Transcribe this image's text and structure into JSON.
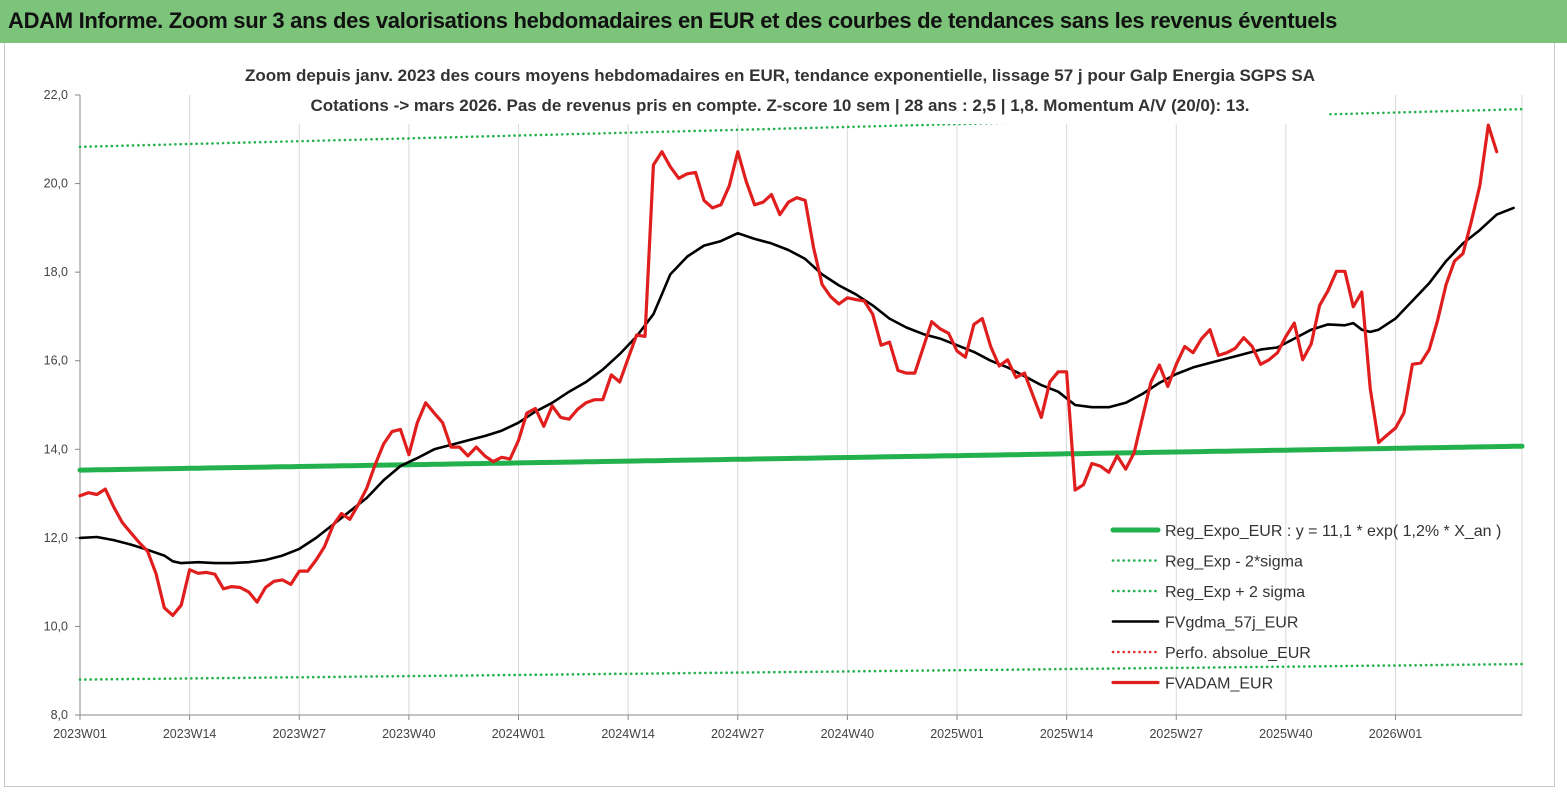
{
  "banner": {
    "title": "ADAM Informe. Zoom sur 3 ans des valorisations hebdomadaires en EUR et des courbes de tendances sans les revenus éventuels"
  },
  "chart_data": {
    "type": "line",
    "title": "Zoom depuis janv. 2023 des cours moyens hebdomadaires en EUR, tendance exponentielle, lissage 57 j pour Galp Energia SGPS SA",
    "subtitle": "Cotations -> mars 2026. Pas de revenus pris en compte. Z-score 10 sem | 28 ans : 2,5 | 1,8. Momentum A/V (20/0): 13.",
    "xlabel": "",
    "ylabel": "",
    "ylim": [
      8,
      22
    ],
    "yticks": [
      "8,0",
      "10,0",
      "12,0",
      "14,0",
      "16,0",
      "18,0",
      "20,0",
      "22,0"
    ],
    "xticks": [
      "2023W01",
      "2023W14",
      "2023W27",
      "2023W40",
      "2024W01",
      "2024W14",
      "2024W27",
      "2024W40",
      "2025W01",
      "2025W14",
      "2025W27",
      "2025W40",
      "2026W01"
    ],
    "x_tick_weeks": [
      0,
      13,
      26,
      39,
      52,
      65,
      78,
      91,
      104,
      117,
      130,
      143,
      156
    ],
    "x_range_weeks": [
      0,
      171
    ],
    "grid": "vertical",
    "legend_position": "right",
    "series": [
      {
        "name": "Reg_Expo_EUR : y = 11,1 * exp( 1,2% *  X_an )",
        "color": "#22b14c",
        "style": "solid-thick",
        "points": [
          [
            0,
            13.53
          ],
          [
            171,
            14.07
          ]
        ]
      },
      {
        "name": "Reg_Exp - 2*sigma",
        "color": "#22b14c",
        "style": "dotted",
        "points": [
          [
            0,
            8.8
          ],
          [
            171,
            9.15
          ]
        ]
      },
      {
        "name": "Reg_Exp + 2 sigma",
        "color": "#22b14c",
        "style": "dotted",
        "points": [
          [
            0,
            20.83
          ],
          [
            171,
            21.68
          ]
        ]
      },
      {
        "name": "FVgdma_57j_EUR",
        "color": "#000000",
        "style": "solid",
        "points": [
          [
            0,
            12.0
          ],
          [
            2,
            12.02
          ],
          [
            4,
            11.95
          ],
          [
            6,
            11.85
          ],
          [
            8,
            11.73
          ],
          [
            10,
            11.6
          ],
          [
            11,
            11.47
          ],
          [
            12,
            11.43
          ],
          [
            14,
            11.45
          ],
          [
            16,
            11.43
          ],
          [
            18,
            11.43
          ],
          [
            20,
            11.45
          ],
          [
            22,
            11.5
          ],
          [
            24,
            11.6
          ],
          [
            26,
            11.75
          ],
          [
            28,
            12.0
          ],
          [
            30,
            12.3
          ],
          [
            32,
            12.6
          ],
          [
            34,
            12.9
          ],
          [
            36,
            13.3
          ],
          [
            38,
            13.62
          ],
          [
            40,
            13.8
          ],
          [
            42,
            14.0
          ],
          [
            44,
            14.1
          ],
          [
            46,
            14.2
          ],
          [
            48,
            14.3
          ],
          [
            50,
            14.42
          ],
          [
            52,
            14.6
          ],
          [
            54,
            14.85
          ],
          [
            56,
            15.05
          ],
          [
            58,
            15.3
          ],
          [
            60,
            15.52
          ],
          [
            62,
            15.8
          ],
          [
            64,
            16.15
          ],
          [
            66,
            16.55
          ],
          [
            68,
            17.05
          ],
          [
            69,
            17.5
          ],
          [
            70,
            17.95
          ],
          [
            72,
            18.35
          ],
          [
            74,
            18.6
          ],
          [
            76,
            18.7
          ],
          [
            78,
            18.88
          ],
          [
            80,
            18.75
          ],
          [
            82,
            18.65
          ],
          [
            84,
            18.5
          ],
          [
            86,
            18.3
          ],
          [
            88,
            17.95
          ],
          [
            90,
            17.7
          ],
          [
            92,
            17.5
          ],
          [
            94,
            17.25
          ],
          [
            96,
            16.95
          ],
          [
            98,
            16.75
          ],
          [
            100,
            16.6
          ],
          [
            102,
            16.5
          ],
          [
            104,
            16.35
          ],
          [
            106,
            16.2
          ],
          [
            108,
            16.0
          ],
          [
            110,
            15.85
          ],
          [
            112,
            15.65
          ],
          [
            114,
            15.45
          ],
          [
            116,
            15.3
          ],
          [
            118,
            15.0
          ],
          [
            120,
            14.95
          ],
          [
            122,
            14.95
          ],
          [
            124,
            15.05
          ],
          [
            126,
            15.25
          ],
          [
            128,
            15.5
          ],
          [
            130,
            15.7
          ],
          [
            132,
            15.85
          ],
          [
            134,
            15.95
          ],
          [
            136,
            16.05
          ],
          [
            138,
            16.15
          ],
          [
            140,
            16.25
          ],
          [
            142,
            16.3
          ],
          [
            144,
            16.5
          ],
          [
            146,
            16.7
          ],
          [
            148,
            16.82
          ],
          [
            150,
            16.8
          ],
          [
            151,
            16.85
          ],
          [
            152,
            16.7
          ],
          [
            153,
            16.65
          ],
          [
            154,
            16.7
          ],
          [
            156,
            16.95
          ],
          [
            158,
            17.35
          ],
          [
            160,
            17.75
          ],
          [
            162,
            18.25
          ],
          [
            164,
            18.65
          ],
          [
            166,
            18.95
          ],
          [
            168,
            19.3
          ],
          [
            170,
            19.45
          ]
        ]
      },
      {
        "name": "Perfo. absolue_EUR",
        "color": "#e03030",
        "style": "dotted",
        "points": []
      },
      {
        "name": "FVADAM_EUR",
        "color": "#e01e1e",
        "style": "solid-thick",
        "points": [
          [
            0,
            12.95
          ],
          [
            1,
            13.02
          ],
          [
            2,
            12.98
          ],
          [
            3,
            13.1
          ],
          [
            4,
            12.7
          ],
          [
            5,
            12.35
          ],
          [
            6,
            12.12
          ],
          [
            7,
            11.9
          ],
          [
            8,
            11.7
          ],
          [
            9,
            11.2
          ],
          [
            10,
            10.42
          ],
          [
            11,
            10.25
          ],
          [
            12,
            10.48
          ],
          [
            13,
            11.28
          ],
          [
            14,
            11.2
          ],
          [
            15,
            11.22
          ],
          [
            16,
            11.18
          ],
          [
            17,
            10.85
          ],
          [
            18,
            10.9
          ],
          [
            19,
            10.88
          ],
          [
            20,
            10.78
          ],
          [
            21,
            10.55
          ],
          [
            22,
            10.88
          ],
          [
            23,
            11.02
          ],
          [
            24,
            11.05
          ],
          [
            25,
            10.95
          ],
          [
            26,
            11.25
          ],
          [
            27,
            11.25
          ],
          [
            28,
            11.5
          ],
          [
            29,
            11.8
          ],
          [
            30,
            12.28
          ],
          [
            31,
            12.55
          ],
          [
            32,
            12.42
          ],
          [
            33,
            12.75
          ],
          [
            34,
            13.12
          ],
          [
            35,
            13.65
          ],
          [
            36,
            14.12
          ],
          [
            37,
            14.4
          ],
          [
            38,
            14.45
          ],
          [
            39,
            13.88
          ],
          [
            40,
            14.6
          ],
          [
            41,
            15.05
          ],
          [
            42,
            14.82
          ],
          [
            43,
            14.6
          ],
          [
            44,
            14.05
          ],
          [
            45,
            14.05
          ],
          [
            46,
            13.85
          ],
          [
            47,
            14.05
          ],
          [
            48,
            13.85
          ],
          [
            49,
            13.72
          ],
          [
            50,
            13.82
          ],
          [
            51,
            13.78
          ],
          [
            52,
            14.2
          ],
          [
            53,
            14.82
          ],
          [
            54,
            14.92
          ],
          [
            55,
            14.52
          ],
          [
            56,
            14.98
          ],
          [
            57,
            14.72
          ],
          [
            58,
            14.68
          ],
          [
            59,
            14.9
          ],
          [
            60,
            15.05
          ],
          [
            61,
            15.12
          ],
          [
            62,
            15.12
          ],
          [
            63,
            15.68
          ],
          [
            64,
            15.52
          ],
          [
            65,
            16.05
          ],
          [
            66,
            16.58
          ],
          [
            67,
            16.55
          ],
          [
            68,
            20.42
          ],
          [
            69,
            20.72
          ],
          [
            70,
            20.38
          ],
          [
            71,
            20.12
          ],
          [
            72,
            20.22
          ],
          [
            73,
            20.25
          ],
          [
            74,
            19.62
          ],
          [
            75,
            19.45
          ],
          [
            76,
            19.52
          ],
          [
            77,
            19.95
          ],
          [
            78,
            20.72
          ],
          [
            79,
            20.05
          ],
          [
            80,
            19.52
          ],
          [
            81,
            19.58
          ],
          [
            82,
            19.75
          ],
          [
            83,
            19.3
          ],
          [
            84,
            19.58
          ],
          [
            85,
            19.68
          ],
          [
            86,
            19.62
          ],
          [
            87,
            18.55
          ],
          [
            88,
            17.72
          ],
          [
            89,
            17.45
          ],
          [
            90,
            17.28
          ],
          [
            91,
            17.42
          ],
          [
            92,
            17.38
          ],
          [
            93,
            17.35
          ],
          [
            94,
            17.05
          ],
          [
            95,
            16.35
          ],
          [
            96,
            16.42
          ],
          [
            97,
            15.78
          ],
          [
            98,
            15.72
          ],
          [
            99,
            15.72
          ],
          [
            100,
            16.3
          ],
          [
            101,
            16.88
          ],
          [
            102,
            16.72
          ],
          [
            103,
            16.62
          ],
          [
            104,
            16.22
          ],
          [
            105,
            16.08
          ],
          [
            106,
            16.82
          ],
          [
            107,
            16.95
          ],
          [
            108,
            16.32
          ],
          [
            109,
            15.88
          ],
          [
            110,
            16.02
          ],
          [
            111,
            15.62
          ],
          [
            112,
            15.72
          ],
          [
            113,
            15.22
          ],
          [
            114,
            14.72
          ],
          [
            115,
            15.52
          ],
          [
            116,
            15.75
          ],
          [
            117,
            15.75
          ],
          [
            118,
            13.08
          ],
          [
            119,
            13.2
          ],
          [
            120,
            13.68
          ],
          [
            121,
            13.62
          ],
          [
            122,
            13.48
          ],
          [
            123,
            13.85
          ],
          [
            124,
            13.55
          ],
          [
            125,
            13.92
          ],
          [
            126,
            14.72
          ],
          [
            127,
            15.52
          ],
          [
            128,
            15.9
          ],
          [
            129,
            15.42
          ],
          [
            130,
            15.92
          ],
          [
            131,
            16.32
          ],
          [
            132,
            16.18
          ],
          [
            133,
            16.5
          ],
          [
            134,
            16.7
          ],
          [
            135,
            16.12
          ],
          [
            136,
            16.18
          ],
          [
            137,
            16.28
          ],
          [
            138,
            16.52
          ],
          [
            139,
            16.32
          ],
          [
            140,
            15.92
          ],
          [
            141,
            16.02
          ],
          [
            142,
            16.18
          ],
          [
            143,
            16.55
          ],
          [
            144,
            16.85
          ],
          [
            145,
            16.02
          ],
          [
            146,
            16.38
          ],
          [
            147,
            17.25
          ],
          [
            148,
            17.58
          ],
          [
            149,
            18.02
          ],
          [
            150,
            18.02
          ],
          [
            151,
            17.22
          ],
          [
            152,
            17.55
          ],
          [
            153,
            15.38
          ],
          [
            154,
            14.15
          ],
          [
            155,
            14.32
          ],
          [
            156,
            14.48
          ],
          [
            157,
            14.82
          ],
          [
            158,
            15.92
          ],
          [
            159,
            15.95
          ],
          [
            160,
            16.25
          ],
          [
            161,
            16.92
          ],
          [
            162,
            17.72
          ],
          [
            163,
            18.25
          ],
          [
            164,
            18.42
          ],
          [
            165,
            19.15
          ],
          [
            166,
            19.95
          ],
          [
            167,
            21.32
          ],
          [
            168,
            20.72
          ]
        ]
      }
    ]
  }
}
